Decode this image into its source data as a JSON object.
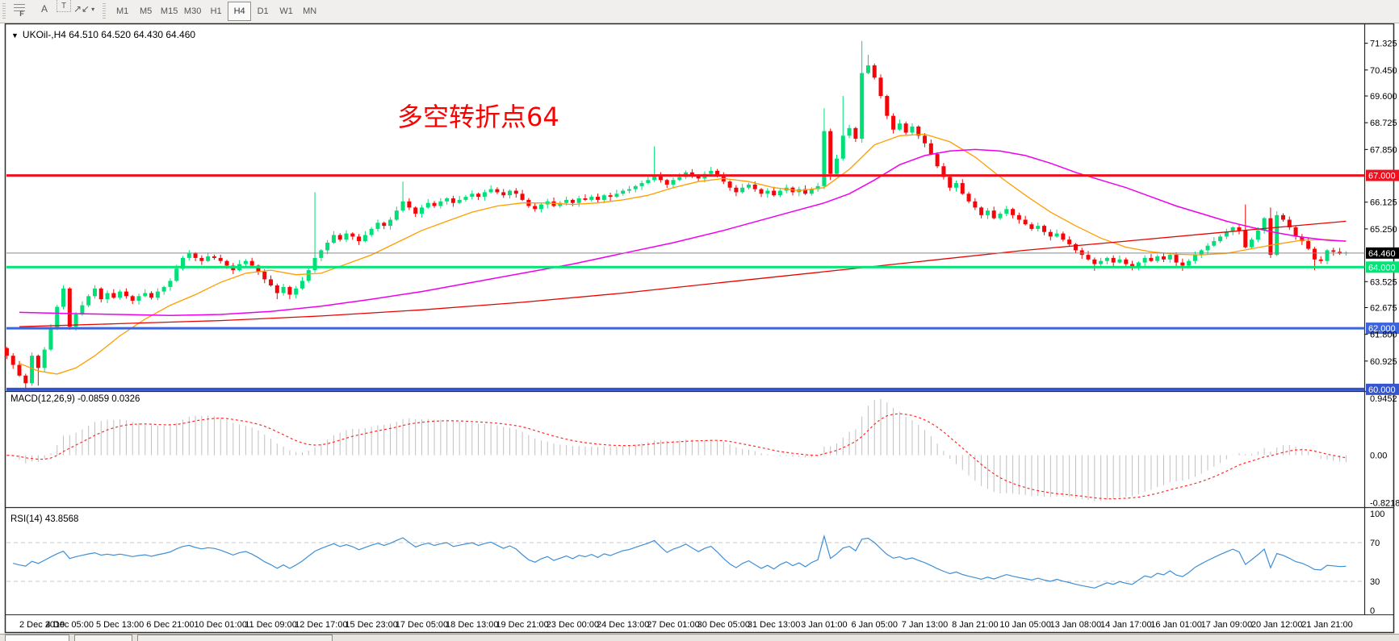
{
  "toolbar": {
    "tools": [
      {
        "name": "fibonacci-tool",
        "label": "F"
      },
      {
        "name": "text-tool",
        "label": "A"
      },
      {
        "name": "text-label-tool",
        "label": "T"
      },
      {
        "name": "arrows-tool",
        "label": "↗↙",
        "dropdown": "▾"
      }
    ],
    "timeframes": [
      "M1",
      "M5",
      "M15",
      "M30",
      "H1",
      "H4",
      "D1",
      "W1",
      "MN"
    ],
    "active_timeframe": "H4"
  },
  "chart": {
    "title": {
      "text": "UKOil-,H4  64.510 64.520 64.430 64.460",
      "symbol": "UKOil-",
      "period": "H4",
      "open": "64.510",
      "high": "64.520",
      "low": "64.430",
      "close": "64.460"
    },
    "annotation": {
      "text": "多空转折点64",
      "color": "#ff0000"
    },
    "price_axis": {
      "ticks": [
        "71.325",
        "70.450",
        "69.600",
        "68.725",
        "67.850",
        "66.125",
        "65.250",
        "63.525",
        "62.675",
        "61.800",
        "60.925"
      ],
      "current_price": {
        "label": "64.460",
        "value": 64.46,
        "badge_bg": "#000000",
        "line_color": "#8a8a8a"
      }
    },
    "time_axis": {
      "labels": [
        "2 Dec 2019",
        "4 Dec 05:00",
        "5 Dec 13:00",
        "6 Dec 21:00",
        "10 Dec 01:00",
        "11 Dec 09:00",
        "12 Dec 17:00",
        "15 Dec 23:00",
        "17 Dec 05:00",
        "18 Dec 13:00",
        "19 Dec 21:00",
        "23 Dec 00:00",
        "24 Dec 13:00",
        "27 Dec 01:00",
        "30 Dec 05:00",
        "31 Dec 13:00",
        "3 Jan 01:00",
        "6 Jan 05:00",
        "7 Jan 13:00",
        "8 Jan 21:00",
        "10 Jan 05:00",
        "13 Jan 08:00",
        "14 Jan 17:00",
        "16 Jan 01:00",
        "17 Jan 09:00",
        "20 Jan 12:00",
        "21 Jan 21:00"
      ],
      "bars_per_label": 8
    }
  },
  "macd_panel": {
    "label": "MACD(12,26,9) -0.0859 0.0326",
    "scale_top": "0.9452",
    "scale_zero": "0.00",
    "scale_bottom": "-0.8218",
    "histogram_color": "#c0c0c0",
    "signal_color": "#ff2a2a"
  },
  "rsi_panel": {
    "label": "RSI(14) 43.8568",
    "scale": [
      "100",
      "70",
      "30",
      "0"
    ],
    "levels": [
      70,
      30
    ],
    "line_color": "#3d8fd8"
  },
  "chart_data": {
    "type": "candlestick",
    "symbol": "UKOil-",
    "timeframe": "H4",
    "ylim": [
      59.97,
      71.87
    ],
    "x_range_labels": [
      "2 Dec 2019",
      "21 Jan 21:00"
    ],
    "current_ohlc": {
      "open": 64.51,
      "high": 64.52,
      "low": 64.43,
      "close": 64.46
    },
    "horizontal_levels": [
      {
        "price": 67.0,
        "label": "67.000",
        "color": "#f10f1e",
        "width": 3
      },
      {
        "price": 64.0,
        "label": "64.000",
        "color": "#00e676",
        "width": 3
      },
      {
        "price": 62.0,
        "label": "62.000",
        "color": "#3c64dc",
        "width": 3
      },
      {
        "price": 60.0,
        "label": "60.000",
        "color": "#3455cd",
        "width": 4
      }
    ],
    "candle_up_color": "#00df78",
    "candle_down_color": "#f40608",
    "candles": {
      "first_open": 61.35,
      "pre_closes": [
        61.1,
        60.8
      ],
      "closes": [
        60.45,
        60.2,
        61.1,
        60.7,
        61.3,
        62.0,
        62.7,
        63.3,
        62.05,
        62.45,
        62.75,
        63.05,
        63.3,
        62.95,
        63.15,
        63.0,
        63.2,
        63.05,
        62.9,
        63.05,
        63.15,
        63.0,
        63.2,
        63.35,
        63.55,
        63.95,
        64.3,
        64.45,
        64.3,
        64.2,
        64.35,
        64.3,
        64.2,
        64.05,
        63.9,
        64.1,
        64.2,
        64.05,
        63.85,
        63.6,
        63.4,
        63.15,
        63.35,
        63.1,
        63.3,
        63.55,
        63.9,
        64.3,
        64.55,
        64.8,
        65.05,
        64.9,
        65.1,
        65.0,
        64.85,
        65.05,
        65.25,
        65.45,
        65.35,
        65.55,
        65.85,
        66.15,
        65.95,
        65.75,
        65.95,
        66.1,
        66.0,
        66.15,
        66.25,
        66.1,
        66.2,
        66.3,
        66.4,
        66.3,
        66.45,
        66.55,
        66.45,
        66.35,
        66.5,
        66.4,
        66.2,
        66.0,
        65.9,
        66.05,
        66.15,
        66.0,
        66.1,
        66.2,
        66.1,
        66.25,
        66.2,
        66.3,
        66.2,
        66.35,
        66.3,
        66.4,
        66.5,
        66.55,
        66.65,
        66.75,
        66.85,
        67.0,
        66.85,
        66.7,
        66.85,
        66.95,
        67.1,
        67.0,
        66.9,
        67.05,
        67.15,
        67.0,
        66.8,
        66.6,
        66.45,
        66.6,
        66.7,
        66.55,
        66.4,
        66.5,
        66.35,
        66.5,
        66.6,
        66.45,
        66.55,
        66.4,
        66.55,
        66.65,
        68.45,
        67.05,
        67.55,
        68.3,
        68.55,
        68.2,
        70.35,
        70.6,
        70.2,
        69.6,
        68.95,
        68.5,
        68.7,
        68.4,
        68.6,
        68.3,
        68.05,
        67.7,
        67.3,
        66.95,
        66.6,
        66.75,
        66.4,
        66.15,
        65.95,
        65.7,
        65.85,
        65.6,
        65.75,
        65.9,
        65.7,
        65.55,
        65.4,
        65.25,
        65.35,
        65.15,
        65.0,
        65.1,
        64.9,
        64.75,
        64.55,
        64.4,
        64.25,
        64.1,
        64.2,
        64.3,
        64.15,
        64.25,
        64.1,
        64.0,
        64.15,
        64.3,
        64.2,
        64.35,
        64.25,
        64.4,
        64.15,
        64.05,
        64.2,
        64.4,
        64.55,
        64.7,
        64.85,
        65.0,
        65.15,
        65.3,
        65.2,
        64.65,
        64.9,
        65.2,
        65.6,
        64.4,
        65.7,
        65.55,
        65.3,
        65.0,
        64.85,
        64.6,
        64.25,
        64.2,
        64.55,
        64.5,
        64.44,
        64.46
      ],
      "wick_overrides": {
        "1": {
          "l": 60.05
        },
        "3": {
          "l": 60.12
        },
        "8": {
          "l": 61.95
        },
        "41": {
          "l": 62.95
        },
        "43": {
          "l": 62.95
        },
        "47": {
          "h": 66.45
        },
        "61": {
          "h": 66.8
        },
        "101": {
          "h": 67.95
        },
        "128": {
          "h": 69.2,
          "l": 66.55
        },
        "129": {
          "l": 66.85
        },
        "131": {
          "h": 69.6
        },
        "134": {
          "h": 71.4
        },
        "135": {
          "h": 70.95
        },
        "171": {
          "l": 63.88
        },
        "177": {
          "l": 63.9
        },
        "185": {
          "l": 63.88
        },
        "195": {
          "h": 66.05
        },
        "199": {
          "h": 65.95,
          "l": 64.3
        },
        "206": {
          "l": 63.9
        }
      }
    },
    "moving_averages": [
      {
        "name": "fast-ma",
        "color": "#ff9d00",
        "width": 1.3,
        "waypoints": [
          [
            0,
            60.85
          ],
          [
            3,
            60.6
          ],
          [
            6,
            60.5
          ],
          [
            9,
            60.7
          ],
          [
            12,
            61.1
          ],
          [
            16,
            61.75
          ],
          [
            20,
            62.3
          ],
          [
            24,
            62.75
          ],
          [
            28,
            63.1
          ],
          [
            32,
            63.5
          ],
          [
            36,
            63.8
          ],
          [
            40,
            63.9
          ],
          [
            44,
            63.75
          ],
          [
            48,
            63.8
          ],
          [
            52,
            64.1
          ],
          [
            56,
            64.4
          ],
          [
            60,
            64.8
          ],
          [
            64,
            65.2
          ],
          [
            68,
            65.5
          ],
          [
            72,
            65.8
          ],
          [
            76,
            66.0
          ],
          [
            80,
            66.1
          ],
          [
            84,
            66.1
          ],
          [
            88,
            66.05
          ],
          [
            92,
            66.1
          ],
          [
            96,
            66.2
          ],
          [
            100,
            66.35
          ],
          [
            104,
            66.6
          ],
          [
            108,
            66.8
          ],
          [
            112,
            66.9
          ],
          [
            116,
            66.8
          ],
          [
            120,
            66.6
          ],
          [
            124,
            66.5
          ],
          [
            128,
            66.6
          ],
          [
            132,
            67.2
          ],
          [
            136,
            68.0
          ],
          [
            140,
            68.3
          ],
          [
            144,
            68.35
          ],
          [
            148,
            68.1
          ],
          [
            152,
            67.6
          ],
          [
            156,
            66.95
          ],
          [
            160,
            66.35
          ],
          [
            164,
            65.8
          ],
          [
            168,
            65.35
          ],
          [
            172,
            64.95
          ],
          [
            176,
            64.65
          ],
          [
            180,
            64.5
          ],
          [
            184,
            64.42
          ],
          [
            188,
            64.4
          ],
          [
            192,
            64.45
          ],
          [
            196,
            64.6
          ],
          [
            200,
            64.75
          ],
          [
            204,
            64.88
          ],
          [
            208,
            64.9
          ],
          [
            211,
            64.85
          ]
        ]
      },
      {
        "name": "slow-ma",
        "color": "#ee00ee",
        "width": 1.5,
        "waypoints": [
          [
            0,
            62.52
          ],
          [
            8,
            62.48
          ],
          [
            16,
            62.45
          ],
          [
            24,
            62.42
          ],
          [
            32,
            62.45
          ],
          [
            40,
            62.55
          ],
          [
            48,
            62.72
          ],
          [
            56,
            62.95
          ],
          [
            64,
            63.2
          ],
          [
            72,
            63.5
          ],
          [
            80,
            63.8
          ],
          [
            88,
            64.1
          ],
          [
            96,
            64.45
          ],
          [
            104,
            64.8
          ],
          [
            112,
            65.2
          ],
          [
            120,
            65.65
          ],
          [
            128,
            66.1
          ],
          [
            132,
            66.4
          ],
          [
            136,
            66.85
          ],
          [
            140,
            67.35
          ],
          [
            144,
            67.65
          ],
          [
            148,
            67.8
          ],
          [
            152,
            67.85
          ],
          [
            156,
            67.8
          ],
          [
            160,
            67.65
          ],
          [
            164,
            67.4
          ],
          [
            168,
            67.1
          ],
          [
            172,
            66.85
          ],
          [
            176,
            66.6
          ],
          [
            180,
            66.3
          ],
          [
            184,
            66.0
          ],
          [
            188,
            65.75
          ],
          [
            192,
            65.5
          ],
          [
            196,
            65.3
          ],
          [
            200,
            65.12
          ],
          [
            204,
            64.98
          ],
          [
            208,
            64.88
          ],
          [
            211,
            64.85
          ]
        ]
      },
      {
        "name": "trend-ma",
        "color": "#e60400",
        "width": 1.3,
        "waypoints": [
          [
            0,
            62.05
          ],
          [
            16,
            62.15
          ],
          [
            32,
            62.25
          ],
          [
            48,
            62.4
          ],
          [
            64,
            62.6
          ],
          [
            80,
            62.85
          ],
          [
            96,
            63.15
          ],
          [
            112,
            63.5
          ],
          [
            128,
            63.85
          ],
          [
            144,
            64.2
          ],
          [
            160,
            64.55
          ],
          [
            176,
            64.85
          ],
          [
            192,
            65.15
          ],
          [
            200,
            65.3
          ],
          [
            211,
            65.5
          ]
        ]
      }
    ],
    "indicators": {
      "macd": {
        "fast": 12,
        "slow": 26,
        "signal": 9,
        "current_main": -0.0859,
        "current_signal": 0.0326,
        "scale_max": 0.9452,
        "scale_min": -0.8218
      },
      "rsi": {
        "period": 14,
        "current": 43.8568,
        "scale": [
          0,
          100
        ],
        "levels": [
          70,
          30
        ]
      }
    }
  }
}
